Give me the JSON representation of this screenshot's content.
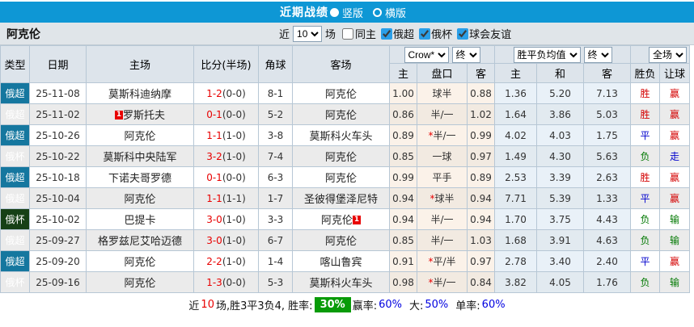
{
  "topbar": {
    "title": "近期战绩",
    "radio_vertical": "竖版",
    "radio_horizontal": "横版"
  },
  "subbar": {
    "team": "阿克伦",
    "near_label": "近",
    "games_value": "10",
    "games_label": "场",
    "same_home": {
      "label": "同主",
      "checked": false
    },
    "filters": [
      {
        "label": "俄超",
        "checked": true
      },
      {
        "label": "俄杯",
        "checked": true
      },
      {
        "label": "球会友谊",
        "checked": true
      }
    ]
  },
  "table": {
    "headers": {
      "type": "类型",
      "date": "日期",
      "home": "主场",
      "score": "比分(半场)",
      "corner": "角球",
      "away": "客场",
      "crown_home": "主",
      "line": "盘口",
      "crown_away": "客",
      "eu_home": "主",
      "eu_draw": "和",
      "eu_away": "客",
      "result": "胜负",
      "handicap": "让球"
    },
    "selects": {
      "bookmaker": "Crow*",
      "crown_time": "终",
      "europe_kind": "胜平负均值",
      "europe_time": "终",
      "scope": "全场"
    },
    "rows": [
      {
        "type": "俄超",
        "type_key": "super",
        "date": "25-11-08",
        "home": "莫斯科迪纳摩",
        "home_self": false,
        "home_card": "",
        "score": "1-2",
        "half": "(0-0)",
        "corner": "8-1",
        "away": "阿克伦",
        "away_self": true,
        "away_card": "",
        "crown_home": "1.00",
        "line": "球半",
        "line_star": false,
        "crown_away": "0.88",
        "eu_home": "1.36",
        "eu_draw": "5.20",
        "eu_away": "7.13",
        "result": "胜",
        "result_cls": "red",
        "cover": "赢",
        "cover_cls": "red"
      },
      {
        "type": "俄超",
        "type_key": "super",
        "date": "25-11-02",
        "home": "罗斯托夫",
        "home_self": false,
        "home_card": "1",
        "score": "0-1",
        "half": "(0-0)",
        "corner": "5-2",
        "away": "阿克伦",
        "away_self": true,
        "away_card": "",
        "crown_home": "0.86",
        "line": "半/一",
        "line_star": false,
        "crown_away": "1.02",
        "eu_home": "1.64",
        "eu_draw": "3.86",
        "eu_away": "5.03",
        "result": "胜",
        "result_cls": "red",
        "cover": "赢",
        "cover_cls": "red"
      },
      {
        "type": "俄超",
        "type_key": "super",
        "date": "25-10-26",
        "home": "阿克伦",
        "home_self": true,
        "home_card": "",
        "score": "1-1",
        "half": "(1-0)",
        "corner": "3-8",
        "away": "莫斯科火车头",
        "away_self": false,
        "away_card": "",
        "crown_home": "0.89",
        "line": "半/一",
        "line_star": true,
        "crown_away": "0.99",
        "eu_home": "4.02",
        "eu_draw": "4.03",
        "eu_away": "1.75",
        "result": "平",
        "result_cls": "blue",
        "cover": "赢",
        "cover_cls": "red"
      },
      {
        "type": "俄杯",
        "type_key": "cup",
        "date": "25-10-22",
        "home": "莫斯科中央陆军",
        "home_self": false,
        "home_card": "",
        "score": "3-2",
        "half": "(1-0)",
        "corner": "7-4",
        "away": "阿克伦",
        "away_self": true,
        "away_card": "",
        "crown_home": "0.85",
        "line": "一球",
        "line_star": false,
        "crown_away": "0.97",
        "eu_home": "1.49",
        "eu_draw": "4.30",
        "eu_away": "5.63",
        "result": "负",
        "result_cls": "green",
        "cover": "走",
        "cover_cls": "blue"
      },
      {
        "type": "俄超",
        "type_key": "super",
        "date": "25-10-18",
        "home": "下诺夫哥罗德",
        "home_self": false,
        "home_card": "",
        "score": "0-1",
        "half": "(0-0)",
        "corner": "6-3",
        "away": "阿克伦",
        "away_self": true,
        "away_card": "",
        "crown_home": "0.99",
        "line": "平手",
        "line_star": false,
        "crown_away": "0.89",
        "eu_home": "2.53",
        "eu_draw": "3.39",
        "eu_away": "2.63",
        "result": "胜",
        "result_cls": "red",
        "cover": "赢",
        "cover_cls": "red"
      },
      {
        "type": "俄超",
        "type_key": "super",
        "date": "25-10-04",
        "home": "阿克伦",
        "home_self": true,
        "home_card": "",
        "score": "1-1",
        "half": "(1-1)",
        "corner": "1-7",
        "away": "圣彼得堡泽尼特",
        "away_self": false,
        "away_card": "",
        "crown_home": "0.94",
        "line": "球半",
        "line_star": true,
        "crown_away": "0.94",
        "eu_home": "7.71",
        "eu_draw": "5.39",
        "eu_away": "1.33",
        "result": "平",
        "result_cls": "blue",
        "cover": "赢",
        "cover_cls": "red"
      },
      {
        "type": "俄杯",
        "type_key": "cup",
        "date": "25-10-02",
        "home": "巴提卡",
        "home_self": false,
        "home_card": "",
        "score": "3-0",
        "half": "(1-0)",
        "corner": "3-3",
        "away": "阿克伦",
        "away_self": true,
        "away_card": "1",
        "crown_home": "0.94",
        "line": "半/一",
        "line_star": false,
        "crown_away": "0.94",
        "eu_home": "1.70",
        "eu_draw": "3.75",
        "eu_away": "4.43",
        "result": "负",
        "result_cls": "green",
        "cover": "输",
        "cover_cls": "green"
      },
      {
        "type": "俄超",
        "type_key": "super",
        "date": "25-09-27",
        "home": "格罗兹尼艾哈迈德",
        "home_self": false,
        "home_card": "",
        "score": "3-0",
        "half": "(1-0)",
        "corner": "6-7",
        "away": "阿克伦",
        "away_self": true,
        "away_card": "",
        "crown_home": "0.85",
        "line": "半/一",
        "line_star": false,
        "crown_away": "1.03",
        "eu_home": "1.68",
        "eu_draw": "3.91",
        "eu_away": "4.63",
        "result": "负",
        "result_cls": "green",
        "cover": "输",
        "cover_cls": "green"
      },
      {
        "type": "俄超",
        "type_key": "super",
        "date": "25-09-20",
        "home": "阿克伦",
        "home_self": true,
        "home_card": "",
        "score": "2-2",
        "half": "(1-0)",
        "corner": "1-4",
        "away": "喀山鲁宾",
        "away_self": false,
        "away_card": "",
        "crown_home": "0.91",
        "line": "平/半",
        "line_star": true,
        "crown_away": "0.97",
        "eu_home": "2.78",
        "eu_draw": "3.40",
        "eu_away": "2.40",
        "result": "平",
        "result_cls": "blue",
        "cover": "赢",
        "cover_cls": "red"
      },
      {
        "type": "俄杯",
        "type_key": "cup",
        "date": "25-09-16",
        "home": "阿克伦",
        "home_self": true,
        "home_card": "",
        "score": "1-3",
        "half": "(0-0)",
        "corner": "5-3",
        "away": "莫斯科火车头",
        "away_self": false,
        "away_card": "",
        "crown_home": "0.98",
        "line": "半/一",
        "line_star": true,
        "crown_away": "0.84",
        "eu_home": "3.82",
        "eu_draw": "4.05",
        "eu_away": "1.76",
        "result": "负",
        "result_cls": "green",
        "cover": "输",
        "cover_cls": "green"
      }
    ]
  },
  "footer": {
    "seg1": "近",
    "games": "10",
    "seg2": "场,胜3平3负4, 胜率:",
    "rate": "30%",
    "win_label": "赢率:",
    "win": "60%",
    "big_label": "大:",
    "big": "50%",
    "single_label": "单率:",
    "single": "60%"
  }
}
